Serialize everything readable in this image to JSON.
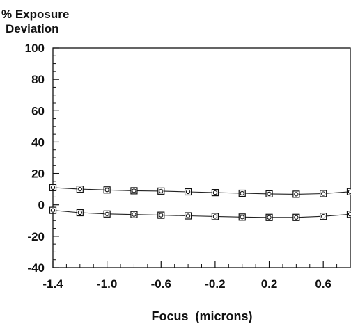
{
  "chart_data": {
    "type": "line",
    "title": "",
    "ylabel_line1": "% Exposure",
    "ylabel_line2": "Deviation",
    "xlabel": "Focus  (microns)",
    "xlim": [
      -1.4,
      0.8
    ],
    "ylim": [
      -40,
      100
    ],
    "x_ticks": [
      -1.4,
      -1.0,
      -0.6,
      -0.2,
      0.2,
      0.6
    ],
    "x_tick_labels": [
      "-1.4",
      "-1.0",
      "-0.6",
      "-0.2",
      "0.2",
      "0.6"
    ],
    "y_ticks": [
      -40,
      -20,
      0,
      20,
      40,
      60,
      80,
      100
    ],
    "y_tick_labels": [
      "-40",
      "-20",
      "0",
      "20",
      "40",
      "60",
      "80",
      "100"
    ],
    "grid": false,
    "marker": "circle-in-square",
    "x": [
      -1.4,
      -1.2,
      -1.0,
      -0.8,
      -0.6,
      -0.4,
      -0.2,
      0.0,
      0.2,
      0.4,
      0.6,
      0.8
    ],
    "series": [
      {
        "values": [
          11,
          10,
          9.5,
          9,
          8.8,
          8.3,
          7.8,
          7.4,
          7.0,
          6.8,
          7.2,
          8.4
        ]
      },
      {
        "values": [
          -3.5,
          -5,
          -5.8,
          -6.2,
          -6.6,
          -7.0,
          -7.4,
          -7.8,
          -8.0,
          -8.0,
          -7.3,
          -6.0
        ]
      }
    ]
  }
}
